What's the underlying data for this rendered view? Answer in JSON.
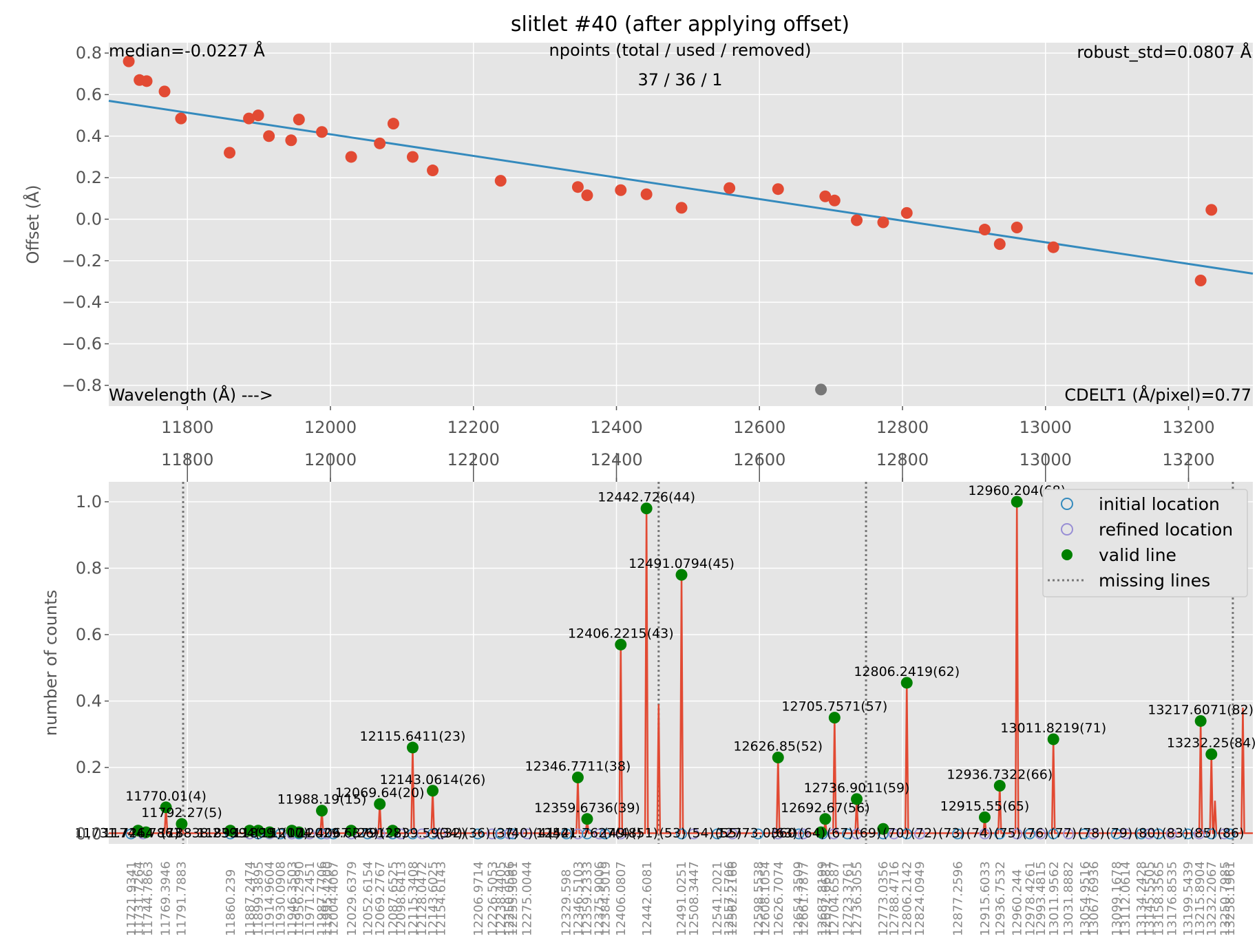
{
  "chart_data": [
    {
      "type": "scatter",
      "title": "slitlet #40 (after applying offset)",
      "xlabel": "",
      "ylabel": "Offset (Å)",
      "xlim": [
        11690,
        13290
      ],
      "ylim": [
        -0.9,
        0.85
      ],
      "xticks": [
        11800,
        12000,
        12200,
        12400,
        12600,
        12800,
        13000,
        13200
      ],
      "yticks": [
        -0.8,
        -0.6,
        -0.4,
        -0.2,
        0.0,
        0.2,
        0.4,
        0.6,
        0.8
      ],
      "ytick_labels": [
        "−0.8",
        "−0.6",
        "−0.4",
        "−0.2",
        "0.0",
        "0.2",
        "0.4",
        "0.6",
        "0.8"
      ],
      "grid": true,
      "annotations": {
        "median": "median=-0.0227 Å",
        "npoints_header": "npoints (total / used / removed)",
        "npoints_values": "37 / 36 / 1",
        "robust_std": "robust_std=0.0807 Å",
        "wavelength": "Wavelength (Å) --->",
        "cdelt1": "CDELT1 (Å/pixel)=0.77"
      },
      "series": [
        {
          "name": "used",
          "color": "#e24a33",
          "points": [
            [
              11718,
              0.76
            ],
            [
              11733,
              0.67
            ],
            [
              11743,
              0.665
            ],
            [
              11768,
              0.615
            ],
            [
              11791,
              0.485
            ],
            [
              11859,
              0.32
            ],
            [
              11886,
              0.485
            ],
            [
              11899,
              0.5
            ],
            [
              11914,
              0.4
            ],
            [
              11945,
              0.38
            ],
            [
              11956,
              0.48
            ],
            [
              11988,
              0.42
            ],
            [
              12029,
              0.3
            ],
            [
              12069,
              0.365
            ],
            [
              12088,
              0.46
            ],
            [
              12115,
              0.3
            ],
            [
              12143,
              0.235
            ],
            [
              12238,
              0.185
            ],
            [
              12346,
              0.155
            ],
            [
              12359,
              0.115
            ],
            [
              12406,
              0.14
            ],
            [
              12442,
              0.12
            ],
            [
              12491,
              0.055
            ],
            [
              12558,
              0.15
            ],
            [
              12626,
              0.145
            ],
            [
              12692,
              0.11
            ],
            [
              12705,
              0.09
            ],
            [
              12736,
              -0.005
            ],
            [
              12773,
              -0.015
            ],
            [
              12806,
              0.03
            ],
            [
              12915,
              -0.05
            ],
            [
              12936,
              -0.12
            ],
            [
              12960,
              -0.04
            ],
            [
              13011,
              -0.135
            ],
            [
              13217,
              -0.295
            ],
            [
              13232,
              0.045
            ]
          ]
        },
        {
          "name": "removed",
          "color": "#777777",
          "points": [
            [
              12686,
              -0.82
            ]
          ]
        }
      ],
      "fit_line": {
        "color": "#348abd",
        "points": [
          [
            11690,
            0.57
          ],
          [
            13290,
            -0.262
          ]
        ]
      }
    },
    {
      "type": "line",
      "xlabel": "",
      "ylabel": "number of counts",
      "xlim": [
        11690,
        13290
      ],
      "ylim": [
        -0.03,
        1.06
      ],
      "xticks": [
        11800,
        12000,
        12200,
        12400,
        12600,
        12800,
        13000,
        13200
      ],
      "yticks": [
        0.0,
        0.2,
        0.4,
        0.6,
        0.8,
        1.0
      ],
      "grid": true,
      "legend": {
        "position": "top-right",
        "entries": [
          "initial location",
          "refined location",
          "valid line",
          "missing lines"
        ]
      },
      "missing_lines": [
        11794,
        12459,
        12749,
        13262
      ],
      "spectrum_color": "#e24a33",
      "valid_color": "#008000",
      "spectrum_peaks": [
        [
          11770,
          0.08
        ],
        [
          11792,
          0.03
        ],
        [
          11988,
          0.07
        ],
        [
          12069,
          0.09
        ],
        [
          12115,
          0.26
        ],
        [
          12143,
          0.13
        ],
        [
          12346,
          0.17
        ],
        [
          12359,
          0.045
        ],
        [
          12406,
          0.57
        ],
        [
          12442,
          0.98
        ],
        [
          12459,
          0.39
        ],
        [
          12491,
          0.78
        ],
        [
          12626,
          0.23
        ],
        [
          12692,
          0.04
        ],
        [
          12705,
          0.35
        ],
        [
          12736,
          0.105
        ],
        [
          12806,
          0.455
        ],
        [
          12915,
          0.05
        ],
        [
          12936,
          0.145
        ],
        [
          12960,
          1.0
        ],
        [
          13011,
          0.285
        ],
        [
          13217,
          0.34
        ],
        [
          13232,
          0.24
        ],
        [
          13237,
          0.1
        ],
        [
          13276,
          0.38
        ]
      ],
      "valid_lines": [
        {
          "x": 11770,
          "y": 0.08,
          "label": "11770.01(4)"
        },
        {
          "x": 11792,
          "y": 0.03,
          "label": "11792.27(5)"
        },
        {
          "x": 11988,
          "y": 0.07,
          "label": "11988.19(15)"
        },
        {
          "x": 12069,
          "y": 0.09,
          "label": "12069.64(20)"
        },
        {
          "x": 12115,
          "y": 0.26,
          "label": "12115.6411(23)"
        },
        {
          "x": 12143,
          "y": 0.13,
          "label": "12143.0614(26)"
        },
        {
          "x": 12346,
          "y": 0.17,
          "label": "12346.7711(38)"
        },
        {
          "x": 12359,
          "y": 0.045,
          "label": "12359.6736(39)"
        },
        {
          "x": 12406,
          "y": 0.57,
          "label": "12406.2215(43)"
        },
        {
          "x": 12442,
          "y": 0.98,
          "label": "12442.726(44)"
        },
        {
          "x": 12491,
          "y": 0.78,
          "label": "12491.0794(45)"
        },
        {
          "x": 12626,
          "y": 0.23,
          "label": "12626.85(52)"
        },
        {
          "x": 12692,
          "y": 0.045,
          "label": "12692.67(56)"
        },
        {
          "x": 12705,
          "y": 0.35,
          "label": "12705.7571(57)"
        },
        {
          "x": 12736,
          "y": 0.105,
          "label": "12736.9011(59)"
        },
        {
          "x": 12806,
          "y": 0.455,
          "label": "12806.2419(62)"
        },
        {
          "x": 12915,
          "y": 0.05,
          "label": "12915.55(65)"
        },
        {
          "x": 12936,
          "y": 0.145,
          "label": "12936.7322(66)"
        },
        {
          "x": 12960,
          "y": 1.0,
          "label": "12960.204(68)"
        },
        {
          "x": 13011,
          "y": 0.285,
          "label": "13011.8219(71)"
        },
        {
          "x": 13217,
          "y": 0.34,
          "label": "13217.6071(82)"
        },
        {
          "x": 13232,
          "y": 0.24,
          "label": "13232.25(84)"
        },
        {
          "x": 11731,
          "y": 0.01,
          "label": ""
        },
        {
          "x": 11742,
          "y": 0.005,
          "label": ""
        },
        {
          "x": 11860,
          "y": 0.01,
          "label": ""
        },
        {
          "x": 11887,
          "y": 0.01,
          "label": ""
        },
        {
          "x": 11899,
          "y": 0.01,
          "label": ""
        },
        {
          "x": 11915,
          "y": 0.005,
          "label": ""
        },
        {
          "x": 11946,
          "y": 0.01,
          "label": ""
        },
        {
          "x": 11956,
          "y": 0.005,
          "label": ""
        },
        {
          "x": 12029,
          "y": 0.01,
          "label": ""
        },
        {
          "x": 12087,
          "y": 0.01,
          "label": ""
        },
        {
          "x": 12686,
          "y": 0.005,
          "label": ""
        },
        {
          "x": 12773,
          "y": 0.015,
          "label": ""
        }
      ],
      "open_markers": [
        11721,
        11738,
        11860,
        11887,
        11899,
        11915,
        11930,
        11946,
        11956,
        11971,
        11987,
        11995,
        12004,
        12029,
        12052,
        12069,
        12087,
        12098,
        12115,
        12128,
        12143,
        12154,
        12206,
        12226,
        12238,
        12250,
        12255,
        12275,
        12330,
        12346,
        12359,
        12376,
        12384,
        12406,
        12491,
        12508,
        12541,
        12562,
        12598,
        12626,
        12655,
        12661,
        12688,
        12704,
        12723,
        12736,
        12773,
        12788,
        12806,
        12824,
        12877,
        12915,
        12936,
        12960,
        12978,
        12993,
        13011,
        13032,
        13054,
        13067,
        13099,
        13112,
        13134,
        13145,
        13158,
        13176,
        13199,
        13215,
        13232,
        13250,
        13258
      ],
      "grey_label_row": [
        "11731.7264",
        "11744.7863",
        "(7)",
        "118838.239",
        "1189394",
        "11899",
        "(15)(17)",
        "12004.4067",
        "12029.6379",
        "(26)",
        "(28)",
        "12239.59(32)",
        "(34)",
        "(36)",
        "(37)",
        "(40)(41)",
        "(42)",
        "12541.7627(48)",
        "(49)",
        "(51)",
        "(53)",
        "(54)",
        "(55)",
        "12773.0360",
        "(63)",
        "(64)",
        "(67)",
        "(69)",
        "(70)",
        "(72)",
        "(73)",
        "(74)",
        "(75)",
        "(76)",
        "(77)",
        "(78)",
        "(79)",
        "(80)",
        "(83)",
        "(85)",
        "(86)"
      ],
      "rotated_labels": [
        "11721.9341",
        "11731.7264",
        "11744.7863",
        "11769.3946",
        "11791.7883",
        "11860.239",
        "11887.2474",
        "11899.3895",
        "11914.9604",
        "11930.0908",
        "11946.3503",
        "11956.2990",
        "11971.2451",
        "11987.7706",
        "11995.4200",
        "12004.4067",
        "12029.6379",
        "12052.6154",
        "12069.2767",
        "12087.6525",
        "12098.6413",
        "12115.3408",
        "12128.0472",
        "12143.6025",
        "12154.6143",
        "12206.9714",
        "12226.5053",
        "12238.4405",
        "12250.0596",
        "12255.3061",
        "12275.0044",
        "12329.598",
        "12346.5103",
        "12359.2333",
        "12375.9006",
        "12384.5019",
        "12406.0807",
        "12442.6081",
        "12491.0251",
        "12508.3447",
        "12541.2021",
        "12557.5706",
        "12562.2166",
        "12598.5538",
        "12608.1054",
        "12626.7074",
        "12654.3509",
        "12661.7877",
        "12687.8199",
        "12692.6681",
        "12704.6587",
        "12723.3761",
        "12736.3055",
        "12773.0356",
        "12788.4716",
        "12806.2142",
        "12824.0949",
        "12877.2596",
        "12915.6033",
        "12936.7532",
        "12960.244",
        "12978.4261",
        "12993.4815",
        "13011.9562",
        "13031.8882",
        "13054.9516",
        "13067.6936",
        "13099.1678",
        "13112.0614",
        "13134.2428",
        "13145.5505",
        "13158.3565",
        "13176.8535",
        "13199.5439",
        "13215.8904",
        "13232.2067",
        "13250.7985",
        "13258.1961"
      ]
    }
  ]
}
